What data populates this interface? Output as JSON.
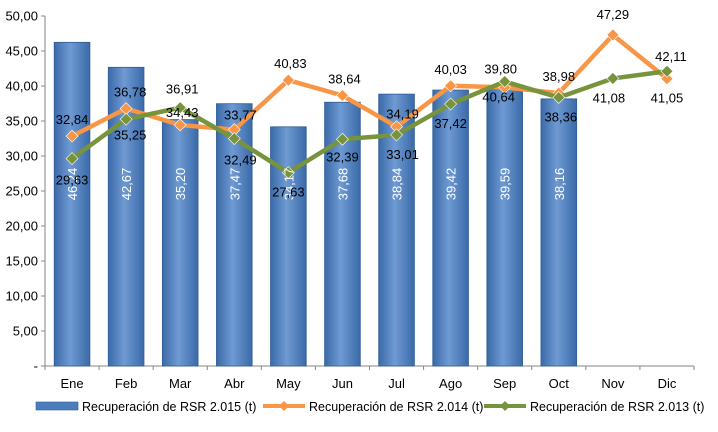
{
  "chart_data": {
    "type": "bar",
    "categories": [
      "Ene",
      "Feb",
      "Mar",
      "Abr",
      "May",
      "Jun",
      "Jul",
      "Ago",
      "Sep",
      "Oct",
      "Nov",
      "Dic"
    ],
    "y_ticks": [
      "-",
      "5,00",
      "10,00",
      "15,00",
      "20,00",
      "25,00",
      "30,00",
      "35,00",
      "40,00",
      "45,00",
      "50,00"
    ],
    "ylim": [
      0,
      50
    ],
    "grid": false,
    "legend_position": "bottom",
    "series": [
      {
        "name": "Recuperación de RSR 2.015 (t)",
        "type": "bar",
        "color": "#4a7ebb",
        "values": [
          46.24,
          42.67,
          35.2,
          37.47,
          34.17,
          37.68,
          38.84,
          39.42,
          39.59,
          38.16,
          null,
          null
        ],
        "labels": [
          "46,24",
          "42,67",
          "35,20",
          "37,47",
          "34,17",
          "37,68",
          "38,84",
          "39,42",
          "39,59",
          "38,16",
          "",
          ""
        ]
      },
      {
        "name": "Recuperación de RSR 2.014 (t)",
        "type": "line",
        "color": "#f79646",
        "values": [
          32.84,
          36.78,
          34.43,
          33.77,
          40.83,
          38.64,
          34.19,
          40.03,
          39.8,
          38.98,
          47.29,
          41.05
        ],
        "labels": [
          "32,84",
          "36,78",
          "34,43",
          "33,77",
          "40,83",
          "38,64",
          "34,19",
          "40,03",
          "39,80",
          "38,98",
          "47,29",
          "41,05"
        ]
      },
      {
        "name": "Recuperación de RSR 2.013 (t)",
        "type": "line",
        "color": "#77933c",
        "values": [
          29.63,
          35.25,
          36.91,
          32.49,
          27.63,
          32.39,
          33.01,
          37.42,
          40.64,
          38.36,
          41.08,
          42.11
        ],
        "labels": [
          "29,63",
          "35,25",
          "36,91",
          "32,49",
          "27,63",
          "32,39",
          "33,01",
          "37,42",
          "40,64",
          "38,36",
          "41,08",
          "42,11"
        ]
      }
    ]
  }
}
